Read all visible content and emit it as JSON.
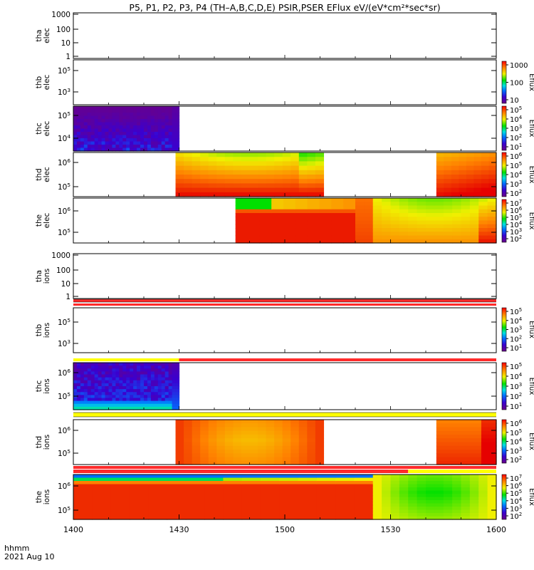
{
  "title": "P5, P1, P2, P3, P4 (TH–A,B,C,D,E) PSIR,PSER EFlux eV/(eV*cm²*sec*sr)",
  "time_axis": {
    "ticks": [
      "1400",
      "1430",
      "1500",
      "1530",
      "1600"
    ],
    "unit_label": "hhmm",
    "date_label": "2021 Aug 10"
  },
  "chart_data": [
    {
      "panel": "tha_elec",
      "ylabel": [
        "tha",
        "elec"
      ],
      "type": "heatmap",
      "y_scale": "log",
      "y_ticks": [
        "1",
        "10",
        "100",
        "1000"
      ],
      "data": "none"
    },
    {
      "panel": "thb_elec",
      "ylabel": [
        "thb",
        "elec"
      ],
      "type": "heatmap",
      "y_scale": "log",
      "y_ticks": [
        "10^3",
        "10^5"
      ],
      "data": "none",
      "colorbar": {
        "label": "Eflux",
        "ticks": [
          "10",
          "100",
          "1000"
        ]
      }
    },
    {
      "panel": "thc_elec",
      "ylabel": [
        "thc",
        "elec"
      ],
      "type": "heatmap",
      "y_scale": "log",
      "y_ticks": [
        "10^4",
        "10^5"
      ],
      "data_coverage": {
        "start": "1400",
        "end": "1430",
        "level": "low (purple/black)"
      },
      "colorbar": {
        "label": "Eflux",
        "ticks": [
          "10^1",
          "10^2",
          "10^3",
          "10^4",
          "10^5"
        ]
      }
    },
    {
      "panel": "thd_elec",
      "ylabel": [
        "thd",
        "elec"
      ],
      "type": "heatmap",
      "y_scale": "log",
      "y_ticks": [
        "10^5",
        "10^6"
      ],
      "data_coverage": [
        {
          "start": "1429",
          "end": "1511"
        },
        {
          "start": "1552",
          "end": "1600"
        }
      ],
      "colorbar": {
        "label": "Eflux",
        "ticks": [
          "10^2",
          "10^3",
          "10^4",
          "10^5",
          "10^6"
        ]
      }
    },
    {
      "panel": "the_elec",
      "ylabel": [
        "the",
        "elec"
      ],
      "type": "heatmap",
      "y_scale": "log",
      "y_ticks": [
        "10^5",
        "10^6"
      ],
      "data_coverage": {
        "start": "1446",
        "end": "1600"
      },
      "colorbar": {
        "label": "Eflux",
        "ticks": [
          "10^2",
          "10^3",
          "10^4",
          "10^5",
          "10^6",
          "10^7"
        ]
      }
    },
    {
      "panel": "tha_ions",
      "ylabel": [
        "tha",
        "ions"
      ],
      "type": "heatmap",
      "y_scale": "log",
      "y_ticks": [
        "1",
        "10",
        "100",
        "1000"
      ],
      "data": "none"
    },
    {
      "panel": "thb_ions",
      "ylabel": [
        "thb",
        "ions"
      ],
      "type": "heatmap",
      "y_scale": "log",
      "y_ticks": [
        "10^3",
        "10^5"
      ],
      "data": "none",
      "colorbar": {
        "label": "Eflux",
        "ticks": [
          "10^1",
          "10^2",
          "10^3",
          "10^4",
          "10^5"
        ]
      }
    },
    {
      "panel": "thc_ions",
      "ylabel": [
        "thc",
        "ions"
      ],
      "type": "heatmap",
      "y_scale": "log",
      "y_ticks": [
        "10^5",
        "10^6"
      ],
      "data_coverage": {
        "start": "1400",
        "end": "1430"
      },
      "colorbar": {
        "label": "Eflux",
        "ticks": [
          "10^1",
          "10^2",
          "10^3",
          "10^4",
          "10^5"
        ]
      }
    },
    {
      "panel": "thd_ions",
      "ylabel": [
        "thd",
        "ions"
      ],
      "type": "heatmap",
      "y_scale": "log",
      "y_ticks": [
        "10^5",
        "10^6"
      ],
      "data_coverage": [
        {
          "start": "1429",
          "end": "1511"
        },
        {
          "start": "1552",
          "end": "1600"
        }
      ],
      "colorbar": {
        "label": "Eflux",
        "ticks": [
          "10^2",
          "10^3",
          "10^4",
          "10^5",
          "10^6"
        ]
      }
    },
    {
      "panel": "the_ions",
      "ylabel": [
        "the",
        "ions"
      ],
      "type": "heatmap",
      "y_scale": "log",
      "y_ticks": [
        "10^5",
        "10^6"
      ],
      "data_coverage": {
        "start": "1400",
        "end": "1600"
      },
      "colorbar": {
        "label": "Eflux",
        "ticks": [
          "10^2",
          "10^3",
          "10^4",
          "10^5",
          "10^6",
          "10^7"
        ]
      }
    }
  ]
}
